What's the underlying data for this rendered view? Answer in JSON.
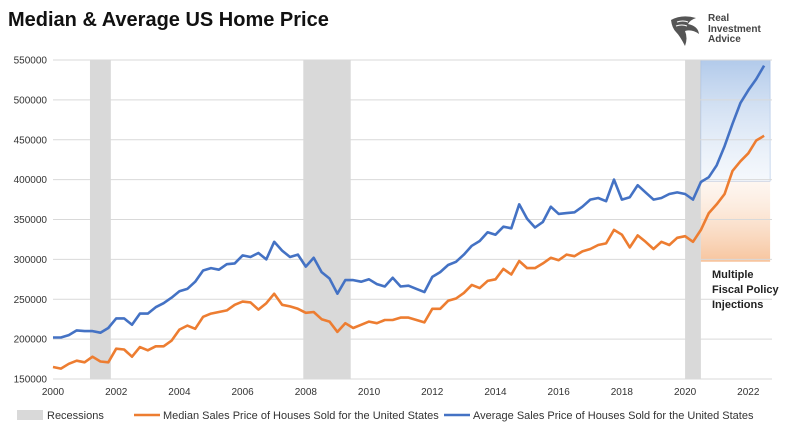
{
  "header": {
    "title": "Median & Average US Home Price"
  },
  "logo": {
    "line1": "Real",
    "line2": "Investment",
    "line3": "Advice",
    "icon": "eagle-head-icon"
  },
  "colors": {
    "median": "#ED7D31",
    "average": "#4472C4",
    "recession": "#D9D9D9",
    "grid": "#D9D9D9",
    "highlight_blue": "#B4CCEB",
    "highlight_orange": "#F8C9A3"
  },
  "chart_data": {
    "type": "line",
    "title": "Median & Average US Home Price",
    "xlim": [
      2000,
      2022.75
    ],
    "ylim": [
      150000,
      550000
    ],
    "x_ticks": [
      2000,
      2002,
      2004,
      2006,
      2008,
      2010,
      2012,
      2014,
      2016,
      2018,
      2020,
      2022
    ],
    "y_ticks": [
      150000,
      200000,
      250000,
      300000,
      350000,
      400000,
      450000,
      500000,
      550000
    ],
    "grid": "horizontal",
    "legend_position": "bottom",
    "recessions": [
      {
        "start": 2001.17,
        "end": 2001.83
      },
      {
        "start": 2007.92,
        "end": 2009.42
      },
      {
        "start": 2020.0,
        "end": 2020.5
      }
    ],
    "highlight_period": {
      "start": 2020.5,
      "end": 2022.5
    },
    "annotation": [
      "Multiple",
      "Fiscal Policy",
      "Injections"
    ],
    "legend": [
      "Recessions",
      "Median Sales Price of Houses Sold for the United States",
      "Average Sales Price of Houses Sold for the United States"
    ],
    "series": [
      {
        "name": "Median Sales Price of Houses Sold for the United States",
        "values": [
          [
            2000.0,
            165000
          ],
          [
            2000.25,
            163000
          ],
          [
            2000.5,
            169000
          ],
          [
            2000.75,
            173000
          ],
          [
            2001.0,
            171000
          ],
          [
            2001.25,
            178000
          ],
          [
            2001.5,
            172000
          ],
          [
            2001.75,
            171000
          ],
          [
            2002.0,
            188000
          ],
          [
            2002.25,
            187000
          ],
          [
            2002.5,
            178000
          ],
          [
            2002.75,
            190000
          ],
          [
            2003.0,
            186000
          ],
          [
            2003.25,
            191000
          ],
          [
            2003.5,
            191000
          ],
          [
            2003.75,
            198000
          ],
          [
            2004.0,
            212000
          ],
          [
            2004.25,
            217000
          ],
          [
            2004.5,
            213000
          ],
          [
            2004.75,
            228000
          ],
          [
            2005.0,
            232000
          ],
          [
            2005.25,
            234000
          ],
          [
            2005.5,
            236000
          ],
          [
            2005.75,
            243000
          ],
          [
            2006.0,
            247000
          ],
          [
            2006.25,
            246000
          ],
          [
            2006.5,
            237000
          ],
          [
            2006.75,
            245000
          ],
          [
            2007.0,
            257000
          ],
          [
            2007.25,
            243000
          ],
          [
            2007.5,
            241000
          ],
          [
            2007.75,
            238000
          ],
          [
            2008.0,
            233000
          ],
          [
            2008.25,
            234000
          ],
          [
            2008.5,
            225000
          ],
          [
            2008.75,
            222000
          ],
          [
            2009.0,
            209000
          ],
          [
            2009.25,
            220000
          ],
          [
            2009.5,
            214000
          ],
          [
            2009.75,
            218000
          ],
          [
            2010.0,
            222000
          ],
          [
            2010.25,
            220000
          ],
          [
            2010.5,
            224000
          ],
          [
            2010.75,
            224000
          ],
          [
            2011.0,
            227000
          ],
          [
            2011.25,
            227000
          ],
          [
            2011.5,
            224000
          ],
          [
            2011.75,
            221000
          ],
          [
            2012.0,
            238000
          ],
          [
            2012.25,
            238000
          ],
          [
            2012.5,
            248000
          ],
          [
            2012.75,
            251000
          ],
          [
            2013.0,
            258000
          ],
          [
            2013.25,
            268000
          ],
          [
            2013.5,
            264000
          ],
          [
            2013.75,
            273000
          ],
          [
            2014.0,
            275000
          ],
          [
            2014.25,
            288000
          ],
          [
            2014.5,
            281000
          ],
          [
            2014.75,
            298000
          ],
          [
            2015.0,
            289000
          ],
          [
            2015.25,
            289000
          ],
          [
            2015.5,
            295000
          ],
          [
            2015.75,
            302000
          ],
          [
            2016.0,
            299000
          ],
          [
            2016.25,
            306000
          ],
          [
            2016.5,
            304000
          ],
          [
            2016.75,
            310000
          ],
          [
            2017.0,
            313000
          ],
          [
            2017.25,
            318000
          ],
          [
            2017.5,
            320000
          ],
          [
            2017.75,
            337000
          ],
          [
            2018.0,
            331000
          ],
          [
            2018.25,
            315000
          ],
          [
            2018.5,
            330000
          ],
          [
            2018.75,
            322000
          ],
          [
            2019.0,
            313000
          ],
          [
            2019.25,
            322000
          ],
          [
            2019.5,
            318000
          ],
          [
            2019.75,
            327000
          ],
          [
            2020.0,
            329000
          ],
          [
            2020.25,
            322000
          ],
          [
            2020.5,
            337000
          ],
          [
            2020.75,
            358000
          ],
          [
            2021.0,
            369000
          ],
          [
            2021.25,
            382000
          ],
          [
            2021.5,
            411000
          ],
          [
            2021.75,
            423000
          ],
          [
            2022.0,
            433000
          ],
          [
            2022.25,
            449000
          ],
          [
            2022.5,
            455000
          ]
        ]
      },
      {
        "name": "Average Sales Price of Houses Sold for the United States",
        "values": [
          [
            2000.0,
            202000
          ],
          [
            2000.25,
            202000
          ],
          [
            2000.5,
            205000
          ],
          [
            2000.75,
            211000
          ],
          [
            2001.0,
            210000
          ],
          [
            2001.25,
            210000
          ],
          [
            2001.5,
            208000
          ],
          [
            2001.75,
            214000
          ],
          [
            2002.0,
            226000
          ],
          [
            2002.25,
            226000
          ],
          [
            2002.5,
            218000
          ],
          [
            2002.75,
            232000
          ],
          [
            2003.0,
            232000
          ],
          [
            2003.25,
            240000
          ],
          [
            2003.5,
            245000
          ],
          [
            2003.75,
            252000
          ],
          [
            2004.0,
            260000
          ],
          [
            2004.25,
            263000
          ],
          [
            2004.5,
            272000
          ],
          [
            2004.75,
            286000
          ],
          [
            2005.0,
            289000
          ],
          [
            2005.25,
            287000
          ],
          [
            2005.5,
            294000
          ],
          [
            2005.75,
            295000
          ],
          [
            2006.0,
            305000
          ],
          [
            2006.25,
            303000
          ],
          [
            2006.5,
            308000
          ],
          [
            2006.75,
            300000
          ],
          [
            2007.0,
            322000
          ],
          [
            2007.25,
            311000
          ],
          [
            2007.5,
            303000
          ],
          [
            2007.75,
            306000
          ],
          [
            2008.0,
            291000
          ],
          [
            2008.25,
            302000
          ],
          [
            2008.5,
            284000
          ],
          [
            2008.75,
            276000
          ],
          [
            2009.0,
            257000
          ],
          [
            2009.25,
            274000
          ],
          [
            2009.5,
            274000
          ],
          [
            2009.75,
            272000
          ],
          [
            2010.0,
            275000
          ],
          [
            2010.25,
            269000
          ],
          [
            2010.5,
            266000
          ],
          [
            2010.75,
            277000
          ],
          [
            2011.0,
            266000
          ],
          [
            2011.25,
            267000
          ],
          [
            2011.5,
            263000
          ],
          [
            2011.75,
            259000
          ],
          [
            2012.0,
            278000
          ],
          [
            2012.25,
            284000
          ],
          [
            2012.5,
            293000
          ],
          [
            2012.75,
            297000
          ],
          [
            2013.0,
            306000
          ],
          [
            2013.25,
            317000
          ],
          [
            2013.5,
            323000
          ],
          [
            2013.75,
            334000
          ],
          [
            2014.0,
            331000
          ],
          [
            2014.25,
            341000
          ],
          [
            2014.5,
            339000
          ],
          [
            2014.75,
            369000
          ],
          [
            2015.0,
            351000
          ],
          [
            2015.25,
            340000
          ],
          [
            2015.5,
            347000
          ],
          [
            2015.75,
            366000
          ],
          [
            2016.0,
            357000
          ],
          [
            2016.25,
            358000
          ],
          [
            2016.5,
            359000
          ],
          [
            2016.75,
            366000
          ],
          [
            2017.0,
            375000
          ],
          [
            2017.25,
            377000
          ],
          [
            2017.5,
            373000
          ],
          [
            2017.75,
            400000
          ],
          [
            2018.0,
            375000
          ],
          [
            2018.25,
            378000
          ],
          [
            2018.5,
            393000
          ],
          [
            2018.75,
            384000
          ],
          [
            2019.0,
            375000
          ],
          [
            2019.25,
            377000
          ],
          [
            2019.5,
            382000
          ],
          [
            2019.75,
            384000
          ],
          [
            2020.0,
            382000
          ],
          [
            2020.25,
            375000
          ],
          [
            2020.5,
            397000
          ],
          [
            2020.75,
            403000
          ],
          [
            2021.0,
            418000
          ],
          [
            2021.25,
            442000
          ],
          [
            2021.5,
            470000
          ],
          [
            2021.75,
            496000
          ],
          [
            2022.0,
            512000
          ],
          [
            2022.25,
            526000
          ],
          [
            2022.5,
            543000
          ]
        ]
      }
    ]
  }
}
